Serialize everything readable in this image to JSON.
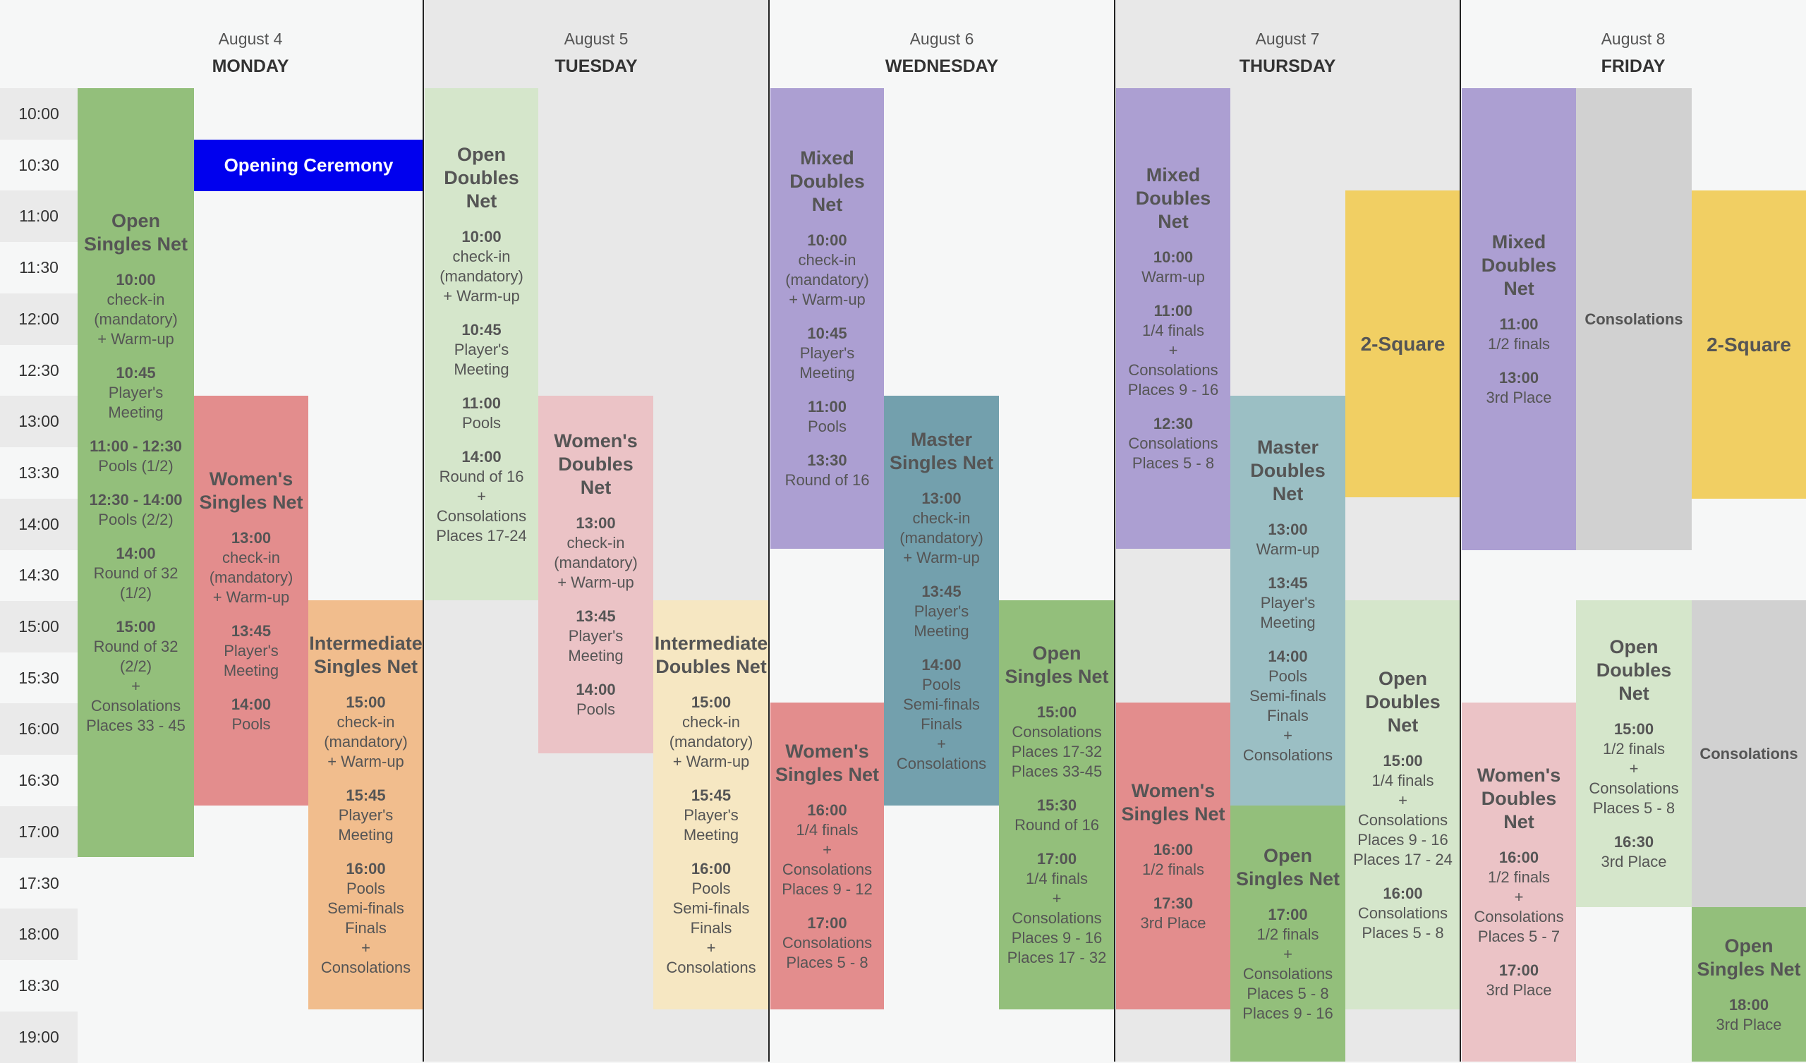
{
  "days": [
    {
      "date": "August 4",
      "weekday": "MONDAY"
    },
    {
      "date": "August 5",
      "weekday": "TUESDAY"
    },
    {
      "date": "August 6",
      "weekday": "WEDNESDAY"
    },
    {
      "date": "August 7",
      "weekday": "THURSDAY"
    },
    {
      "date": "August 8",
      "weekday": "FRIDAY"
    }
  ],
  "times": [
    "10:00",
    "10:30",
    "11:00",
    "11:30",
    "12:00",
    "12:30",
    "13:00",
    "13:30",
    "14:00",
    "14:30",
    "15:00",
    "15:30",
    "16:00",
    "16:30",
    "17:00",
    "17:30",
    "18:00",
    "18:30",
    "19:00"
  ],
  "events": [
    {
      "id": "mon-open-singles",
      "day": 0,
      "title": "Open Singles Net",
      "color": "#93bf7b",
      "lines": [
        {
          "time": "10:00",
          "text": [
            "check-in",
            "(mandatory)",
            "+ Warm-up"
          ]
        },
        {
          "time": "10:45",
          "text": [
            "Player's",
            "Meeting"
          ]
        },
        {
          "time": "11:00 - 12:30",
          "text": [
            "Pools (1/2)"
          ]
        },
        {
          "time": "12:30 - 14:00",
          "text": [
            "Pools (2/2)"
          ]
        },
        {
          "time": "14:00",
          "text": [
            "Round of 32",
            "(1/2)"
          ]
        },
        {
          "time": "15:00",
          "text": [
            "Round of 32",
            "(2/2)",
            "+",
            "Consolations",
            "Places 33 - 45"
          ]
        }
      ]
    },
    {
      "id": "mon-opening",
      "day": 0,
      "title": "Opening Ceremony",
      "color": "#0000ee",
      "lines": []
    },
    {
      "id": "mon-womens-singles",
      "day": 0,
      "title": "Women's Singles Net",
      "color": "#e38d8d",
      "lines": [
        {
          "time": "13:00",
          "text": [
            "check-in",
            "(mandatory)",
            "+ Warm-up"
          ]
        },
        {
          "time": "13:45",
          "text": [
            "Player's",
            "Meeting"
          ]
        },
        {
          "time": "14:00",
          "text": [
            "Pools"
          ]
        }
      ]
    },
    {
      "id": "mon-intermediate-singles",
      "day": 0,
      "title": "Intermediate Singles Net",
      "color": "#f1bd8d",
      "lines": [
        {
          "time": "15:00",
          "text": [
            "check-in",
            "(mandatory)",
            "+ Warm-up"
          ]
        },
        {
          "time": "15:45",
          "text": [
            "Player's",
            "Meeting"
          ]
        },
        {
          "time": "16:00",
          "text": [
            "Pools",
            "Semi-finals",
            "Finals",
            "+",
            "Consolations"
          ]
        }
      ]
    },
    {
      "id": "tue-open-doubles",
      "day": 1,
      "title": "Open Doubles Net",
      "color": "#d5e6cb",
      "lines": [
        {
          "time": "10:00",
          "text": [
            "check-in",
            "(mandatory)",
            "+ Warm-up"
          ]
        },
        {
          "time": "10:45",
          "text": [
            "Player's",
            "Meeting"
          ]
        },
        {
          "time": "11:00",
          "text": [
            "Pools"
          ]
        },
        {
          "time": "14:00",
          "text": [
            "Round of 16",
            "+",
            "Consolations",
            "Places 17-24"
          ]
        }
      ]
    },
    {
      "id": "tue-womens-doubles",
      "day": 1,
      "title": "Women's Doubles Net",
      "color": "#ebc3c6",
      "lines": [
        {
          "time": "13:00",
          "text": [
            "check-in",
            "(mandatory)",
            "+ Warm-up"
          ]
        },
        {
          "time": "13:45",
          "text": [
            "Player's",
            "Meeting"
          ]
        },
        {
          "time": "14:00",
          "text": [
            "Pools"
          ]
        }
      ]
    },
    {
      "id": "tue-intermediate-doubles",
      "day": 1,
      "title": "Intermediate Doubles Net",
      "color": "#f6e7c2",
      "lines": [
        {
          "time": "15:00",
          "text": [
            "check-in",
            "(mandatory)",
            "+ Warm-up"
          ]
        },
        {
          "time": "15:45",
          "text": [
            "Player's",
            "Meeting"
          ]
        },
        {
          "time": "16:00",
          "text": [
            "Pools",
            "Semi-finals",
            "Finals",
            "+",
            "Consolations"
          ]
        }
      ]
    },
    {
      "id": "wed-mixed-doubles",
      "day": 2,
      "title": "Mixed Doubles Net",
      "color": "#ac9fd2",
      "lines": [
        {
          "time": "10:00",
          "text": [
            "check-in",
            "(mandatory)",
            "+ Warm-up"
          ]
        },
        {
          "time": "10:45",
          "text": [
            "Player's",
            "Meeting"
          ]
        },
        {
          "time": "11:00",
          "text": [
            "Pools"
          ]
        },
        {
          "time": "13:30",
          "text": [
            "Round of 16"
          ]
        }
      ]
    },
    {
      "id": "wed-master-singles",
      "day": 2,
      "title": "Master Singles Net",
      "color": "#73a0ad",
      "lines": [
        {
          "time": "13:00",
          "text": [
            "check-in",
            "(mandatory)",
            "+ Warm-up"
          ]
        },
        {
          "time": "13:45",
          "text": [
            "Player's",
            "Meeting"
          ]
        },
        {
          "time": "14:00",
          "text": [
            "Pools",
            "Semi-finals",
            "Finals",
            "+",
            "Consolations"
          ]
        }
      ]
    },
    {
      "id": "wed-womens-singles",
      "day": 2,
      "title": "Women's Singles Net",
      "color": "#e38d8d",
      "lines": [
        {
          "time": "16:00",
          "text": [
            "1/4 finals",
            "+",
            "Consolations",
            "Places 9 - 12"
          ]
        },
        {
          "time": "17:00",
          "text": [
            "Consolations",
            "Places 5 - 8"
          ]
        }
      ]
    },
    {
      "id": "wed-open-singles",
      "day": 2,
      "title": "Open Singles Net",
      "color": "#93bf7b",
      "lines": [
        {
          "time": "15:00",
          "text": [
            "Consolations",
            "Places 17-32",
            "Places 33-45"
          ]
        },
        {
          "time": "15:30",
          "text": [
            "Round of 16"
          ]
        },
        {
          "time": "17:00",
          "text": [
            "1/4 finals",
            "+",
            "Consolations",
            "Places 9 - 16",
            "Places 17 - 32"
          ]
        }
      ]
    },
    {
      "id": "thu-mixed-doubles",
      "day": 3,
      "title": "Mixed Doubles Net",
      "color": "#ac9fd2",
      "lines": [
        {
          "time": "10:00",
          "text": [
            "Warm-up"
          ]
        },
        {
          "time": "11:00",
          "text": [
            "1/4 finals",
            "+",
            "Consolations",
            "Places 9 - 16"
          ]
        },
        {
          "time": "12:30",
          "text": [
            "Consolations",
            "Places 5 - 8"
          ]
        }
      ]
    },
    {
      "id": "thu-master-doubles",
      "day": 3,
      "title": "Master Doubles Net",
      "color": "#9bbfc4",
      "lines": [
        {
          "time": "13:00",
          "text": [
            "Warm-up"
          ]
        },
        {
          "time": "13:45",
          "text": [
            "Player's",
            "Meeting"
          ]
        },
        {
          "time": "14:00",
          "text": [
            "Pools",
            "Semi-finals",
            "Finals",
            "+",
            "Consolations"
          ]
        }
      ]
    },
    {
      "id": "thu-2square",
      "day": 3,
      "title": "2-Square",
      "color": "#f1cf63",
      "lines": []
    },
    {
      "id": "thu-womens-singles",
      "day": 3,
      "title": "Women's Singles Net",
      "color": "#e38d8d",
      "lines": [
        {
          "time": "16:00",
          "text": [
            "1/2 finals"
          ]
        },
        {
          "time": "17:30",
          "text": [
            "3rd Place"
          ]
        }
      ]
    },
    {
      "id": "thu-open-singles",
      "day": 3,
      "title": "Open Singles Net",
      "color": "#93bf7b",
      "lines": [
        {
          "time": "17:00",
          "text": [
            "1/2 finals",
            "+",
            "Consolations",
            "Places 5 - 8",
            "Places 9 - 16"
          ]
        }
      ]
    },
    {
      "id": "thu-open-doubles",
      "day": 3,
      "title": "Open Doubles Net",
      "color": "#d5e6cb",
      "lines": [
        {
          "time": "15:00",
          "text": [
            "1/4 finals",
            "+",
            "Consolations",
            "Places 9 - 16",
            "Places 17 - 24"
          ]
        },
        {
          "time": "16:00",
          "text": [
            "Consolations",
            "Places 5 - 8"
          ]
        }
      ]
    },
    {
      "id": "fri-mixed-doubles",
      "day": 4,
      "title": "Mixed Doubles Net",
      "color": "#ac9fd2",
      "lines": [
        {
          "time": "11:00",
          "text": [
            "1/2 finals"
          ]
        },
        {
          "time": "13:00",
          "text": [
            "3rd Place"
          ]
        }
      ]
    },
    {
      "id": "fri-consolations-1",
      "day": 4,
      "title": "Consolations",
      "color": "#d1d1d1",
      "lines": []
    },
    {
      "id": "fri-2square",
      "day": 4,
      "title": "2-Square",
      "color": "#f1cf63",
      "lines": []
    },
    {
      "id": "fri-womens-doubles",
      "day": 4,
      "title": "Women's Doubles Net",
      "color": "#ebc3c6",
      "lines": [
        {
          "time": "16:00",
          "text": [
            "1/2 finals",
            "+",
            "Consolations",
            "Places 5 - 7"
          ]
        },
        {
          "time": "17:00",
          "text": [
            "3rd Place"
          ]
        }
      ]
    },
    {
      "id": "fri-open-doubles",
      "day": 4,
      "title": "Open Doubles Net",
      "color": "#d5e6cb",
      "lines": [
        {
          "time": "15:00",
          "text": [
            "1/2 finals",
            "+",
            "Consolations",
            "Places 5 - 8"
          ]
        },
        {
          "time": "16:30",
          "text": [
            "3rd Place"
          ]
        }
      ]
    },
    {
      "id": "fri-consolations-2",
      "day": 4,
      "title": "Consolations",
      "color": "#d1d1d1",
      "lines": []
    },
    {
      "id": "fri-open-singles",
      "day": 4,
      "title": "Open Singles Net",
      "color": "#93bf7b",
      "lines": [
        {
          "time": "18:00",
          "text": [
            "3rd Place"
          ]
        }
      ]
    }
  ]
}
